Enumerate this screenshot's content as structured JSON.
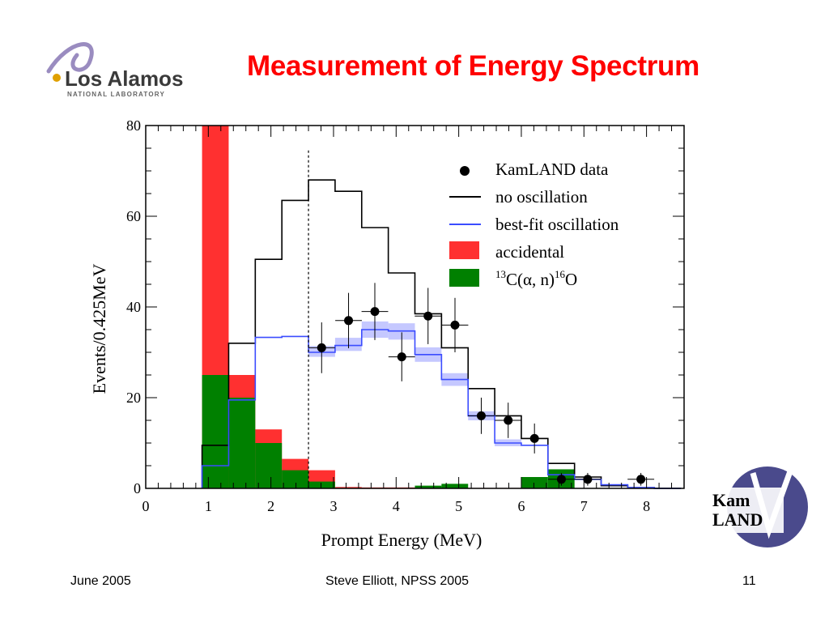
{
  "slide": {
    "title": "Measurement of Energy Spectrum",
    "footer_left": "June 2005",
    "footer_center": "Steve Elliott, NPSS 2005",
    "footer_right": "11",
    "lanl_logo": {
      "name": "Los Alamos",
      "subname": "NATIONAL LABORATORY"
    },
    "kamland_logo": {
      "line1": "Kam",
      "line2": "LAND"
    }
  },
  "chart_data": {
    "type": "histogram",
    "xlabel": "Prompt Energy (MeV)",
    "ylabel": "Events/0.425MeV",
    "xlim": [
      0,
      8.6
    ],
    "ylim": [
      0,
      80
    ],
    "xticks": [
      "0",
      "1",
      "2",
      "3",
      "4",
      "5",
      "6",
      "7",
      "8"
    ],
    "yticks": [
      "0",
      "20",
      "40",
      "60",
      "80"
    ],
    "analysis_threshold": 2.6,
    "bin_edges": [
      0.9,
      1.325,
      1.75,
      2.175,
      2.6,
      3.025,
      3.45,
      3.875,
      4.3,
      4.725,
      5.15,
      5.575,
      6.0,
      6.425,
      6.85,
      7.275,
      7.7,
      8.125,
      8.55
    ],
    "series": [
      {
        "name": "accidental",
        "kind": "filled",
        "color": "#ff3030",
        "values": [
          80,
          25,
          13,
          6.5,
          4,
          0.3,
          0.2,
          0.2,
          0.2,
          0.1,
          0.1,
          0.1,
          0.1,
          0,
          0,
          0,
          0,
          0
        ]
      },
      {
        "name": "13C(α, n)16O",
        "kind": "filled",
        "color": "#008000",
        "values": [
          25,
          20,
          10,
          4,
          1.5,
          0,
          0,
          0,
          0.6,
          1,
          0,
          0,
          2.5,
          4.2,
          0,
          0,
          0,
          0
        ]
      },
      {
        "name": "no oscillation",
        "kind": "step",
        "color": "#000000",
        "values": [
          9.5,
          32,
          50.5,
          63.5,
          68,
          65.5,
          57.5,
          47.5,
          38.5,
          31,
          22,
          16,
          11,
          5.5,
          2.5,
          0.6,
          0.1,
          0
        ]
      },
      {
        "name": "best-fit oscillation",
        "kind": "step_band",
        "color": "#3b4cff",
        "band_color": "#c5c8ff",
        "values": [
          5,
          19.5,
          33.3,
          33.5,
          30,
          31.5,
          35,
          34.7,
          29.5,
          24,
          16,
          10,
          9.5,
          3,
          2,
          0.8,
          0.2,
          0
        ],
        "band_lo": [
          0,
          0,
          0,
          0,
          29,
          30.3,
          33.2,
          32.8,
          27.9,
          22.6,
          15,
          9.3,
          0,
          0,
          0,
          0,
          0,
          0
        ],
        "band_hi": [
          0,
          0,
          0,
          0,
          31.4,
          33.2,
          36.8,
          36.4,
          31.1,
          25.4,
          17,
          10.8,
          0,
          0,
          0,
          0,
          0,
          0
        ]
      },
      {
        "name": "KamLAND data",
        "kind": "points",
        "color": "#000000",
        "x": [
          2.81,
          3.24,
          3.66,
          4.09,
          4.51,
          4.94,
          5.36,
          5.79,
          6.21,
          6.64,
          7.06,
          7.91
        ],
        "y": [
          31,
          37,
          39,
          29,
          38,
          36,
          16,
          15,
          11,
          2,
          2,
          2
        ],
        "yerr": [
          5.6,
          6.1,
          6.3,
          5.4,
          6.2,
          6.0,
          4.0,
          3.9,
          3.3,
          1.4,
          1.4,
          1.4
        ]
      }
    ],
    "legend": {
      "placement": "top-right",
      "entries": [
        {
          "label": "KamLAND data",
          "marker": "point"
        },
        {
          "label": "no oscillation",
          "marker": "line",
          "color": "#000000"
        },
        {
          "label": "best-fit oscillation",
          "marker": "line",
          "color": "#3b4cff"
        },
        {
          "label": "accidental",
          "marker": "box",
          "color": "#ff3030"
        },
        {
          "label_parts": [
            "13",
            "C(",
            "α",
            ", n)",
            "16",
            "O"
          ],
          "marker": "box",
          "color": "#008000"
        }
      ]
    }
  }
}
